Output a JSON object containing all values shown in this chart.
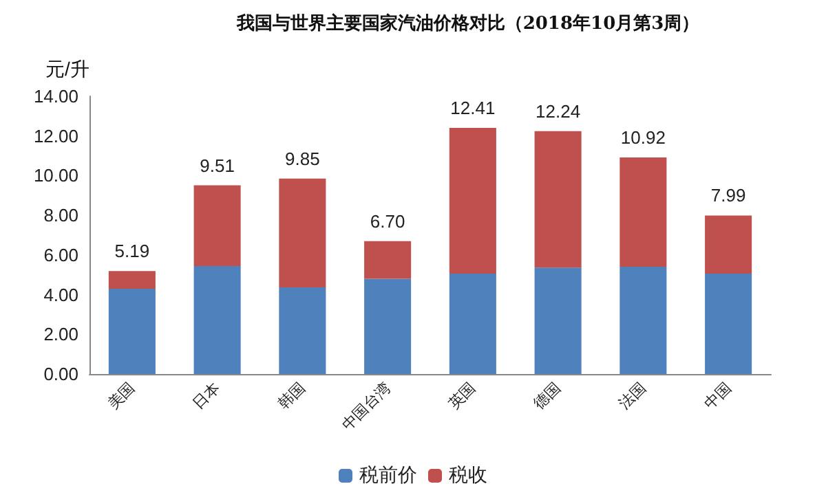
{
  "chart_data": {
    "type": "bar",
    "title": "我国与世界主要国家汽油价格对比（2018年10月第3周）",
    "ylabel": "元/升",
    "categories": [
      "美国",
      "日本",
      "韩国",
      "中国台湾",
      "英国",
      "德国",
      "法国",
      "中国"
    ],
    "stacked": true,
    "series": [
      {
        "name": "税前价",
        "color": "#4f81bd",
        "values": [
          4.3,
          5.44,
          4.37,
          4.8,
          5.06,
          5.36,
          5.41,
          5.06
        ]
      },
      {
        "name": "税收",
        "color": "#c0504d",
        "values": [
          0.89,
          4.07,
          5.48,
          1.9,
          7.35,
          6.88,
          5.51,
          2.93
        ]
      }
    ],
    "totals": [
      "5.19",
      "9.51",
      "9.85",
      "6.70",
      "12.41",
      "12.24",
      "10.92",
      "7.99"
    ],
    "ylim": [
      0,
      14
    ],
    "yticks": [
      {
        "value": 0,
        "label": "0.00"
      },
      {
        "value": 2,
        "label": "2.00"
      },
      {
        "value": 4,
        "label": "4.00"
      },
      {
        "value": 6,
        "label": "6.00"
      },
      {
        "value": 8,
        "label": "8.00"
      },
      {
        "value": 10,
        "label": "10.00"
      },
      {
        "value": 12,
        "label": "12.00"
      },
      {
        "value": 14,
        "label": "14.00"
      }
    ],
    "grid": false,
    "legend": "bottom"
  }
}
